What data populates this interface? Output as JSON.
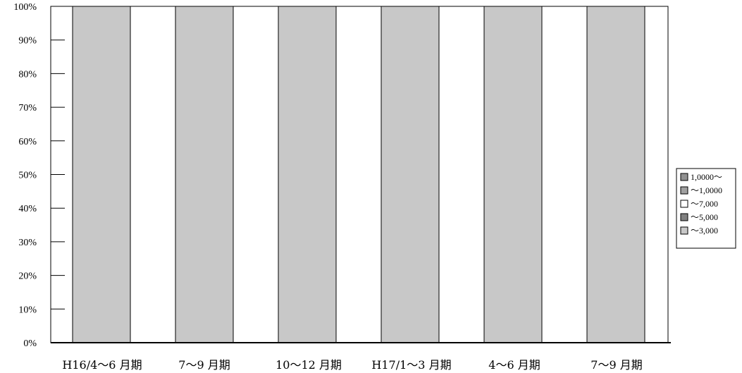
{
  "chart_data": {
    "type": "bar",
    "stacked": true,
    "percent": true,
    "title": "",
    "xlabel": "",
    "ylabel": "",
    "ylim": [
      0,
      100
    ],
    "yticks": [
      "0%",
      "10%",
      "20%",
      "30%",
      "40%",
      "50%",
      "60%",
      "70%",
      "80%",
      "90%",
      "100%"
    ],
    "categories": [
      "H16/4～6 月期",
      "7～9 月期",
      "10～12 月期",
      "H17/1～3 月期",
      "4～6 月期",
      "7～9 月期"
    ],
    "series": [
      {
        "name": "～3,000",
        "color": "#c8c8c8",
        "values": [
          100,
          100,
          100,
          100,
          100,
          100
        ]
      },
      {
        "name": "～5,000",
        "color": "#808080",
        "values": [
          0,
          0,
          0,
          0,
          0,
          0
        ]
      },
      {
        "name": "～7,000",
        "color": "#ffffff",
        "values": [
          0,
          0,
          0,
          0,
          0,
          0
        ]
      },
      {
        "name": "～1,0000",
        "color": "#a0a0a0",
        "values": [
          0,
          0,
          0,
          0,
          0,
          0
        ]
      },
      {
        "name": "1,0000～",
        "color": "#909090",
        "values": [
          0,
          0,
          0,
          0,
          0,
          0
        ]
      }
    ],
    "legend_order": [
      "1,0000～",
      "～1,0000",
      "～7,000",
      "～5,000",
      "～3,000"
    ],
    "legend_position": "right",
    "grid": false
  }
}
